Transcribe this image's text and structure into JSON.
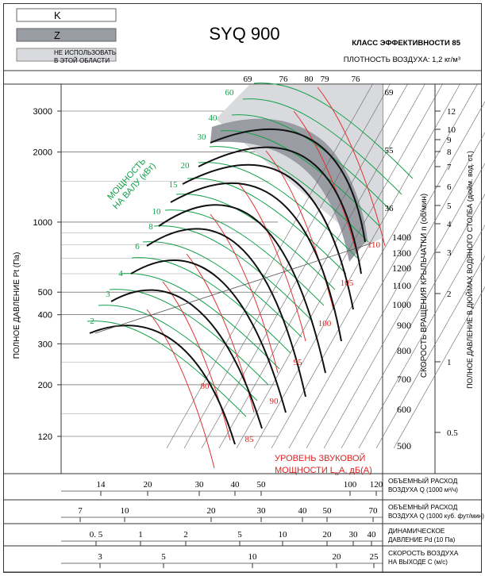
{
  "header": {
    "title": "SYQ 900",
    "efficiency_class": "КЛАСС ЭФФЕКТИВНОСТИ 85",
    "air_density": "ПЛОТНОСТЬ ВОЗДУХА: 1,2 кг/м³",
    "legend": [
      {
        "label": "K",
        "color": "#ffffff"
      },
      {
        "label": "Z",
        "color": "#9a9ca3"
      },
      {
        "label": "НЕ ИСПОЛЬЗОВАТЬ\nВ ЭТОЙ ОБЛАСТИ",
        "color": "#d9dade"
      }
    ]
  },
  "chart_data": {
    "type": "line",
    "y_axis_left": {
      "label": "ПОЛНОЕ ДАВЛЕНИЕ Pt (Па)",
      "scale": "log",
      "ticks": [
        "3000",
        "2000",
        "1000",
        "500",
        "400",
        "300",
        "200",
        "120"
      ]
    },
    "right_axis_rpm": {
      "label": "СКОРОСТЬ ВРАЩЕНИЯ КРЫЛЬЧАТКИ n (об/мин)",
      "ticks": [
        "1400",
        "1300",
        "1200",
        "1100",
        "1000",
        "900",
        "800",
        "700",
        "600",
        "500"
      ]
    },
    "right_axis_inches": {
      "label": "ПОЛНОЕ ДАВЛЕНИЕ В ДЮЙМАХ ВОДЯНОГО СТОЛБА (дюйм. вод. ст.)",
      "ticks": [
        "12",
        "10",
        "9",
        "8",
        "7",
        "6",
        "5",
        "4",
        "3",
        "2",
        "1",
        "0.5"
      ]
    },
    "power_axis": {
      "label": "МОЩНОСТЬ\nНА ВАЛУ (кВт)",
      "ticks": [
        "2",
        "3",
        "4",
        "6",
        "8",
        "10",
        "15",
        "20",
        "30",
        "40",
        "60"
      ],
      "color": "#12a04a"
    },
    "efficiency_labels": [
      "69",
      "76",
      "80",
      "79",
      "76",
      "69",
      "55",
      "36"
    ],
    "sound_power": {
      "label_line1": "УРОВЕНЬ ЗВУКОВОЙ",
      "label_line2": "МОЩНОСТИ L",
      "label_sub": "w",
      "label_suffix": "A, дБ(А)",
      "ticks": [
        "80",
        "85",
        "90",
        "95",
        "100",
        "105",
        "110"
      ],
      "color": "#e02020"
    },
    "colors": {
      "rpm_curve": "#111111",
      "power_line": "#12a04a",
      "sound_line": "#e03030",
      "zone_z": "#9a9ca3",
      "zone_no_use": "#d9dade"
    },
    "bottom_scales": [
      {
        "label": "ОБЪЕМНЫЙ РАСХОД\nВОЗДУХА Q (1000 м³/ч)",
        "ticks": [
          "14",
          "20",
          "30",
          "40",
          "50",
          "100",
          "120"
        ]
      },
      {
        "label": "ОБЪЕМНЫЙ РАСХОД\nВОЗДУХА Q (1000 куб. фут/мин)",
        "ticks": [
          "7",
          "10",
          "20",
          "30",
          "40",
          "50",
          "70"
        ]
      },
      {
        "label": "ДИНАМИЧЕСКОЕ\nДАВЛЕНИЕ Pd (10 Па)",
        "ticks": [
          "0. 5",
          "1",
          "2",
          "5",
          "10",
          "20",
          "30",
          "40"
        ]
      },
      {
        "label": "СКОРОСТЬ ВОЗДУХА\nНА ВЫХОДЕ С (м/с)",
        "ticks": [
          "3",
          "5",
          "10",
          "20",
          "25"
        ]
      }
    ]
  }
}
